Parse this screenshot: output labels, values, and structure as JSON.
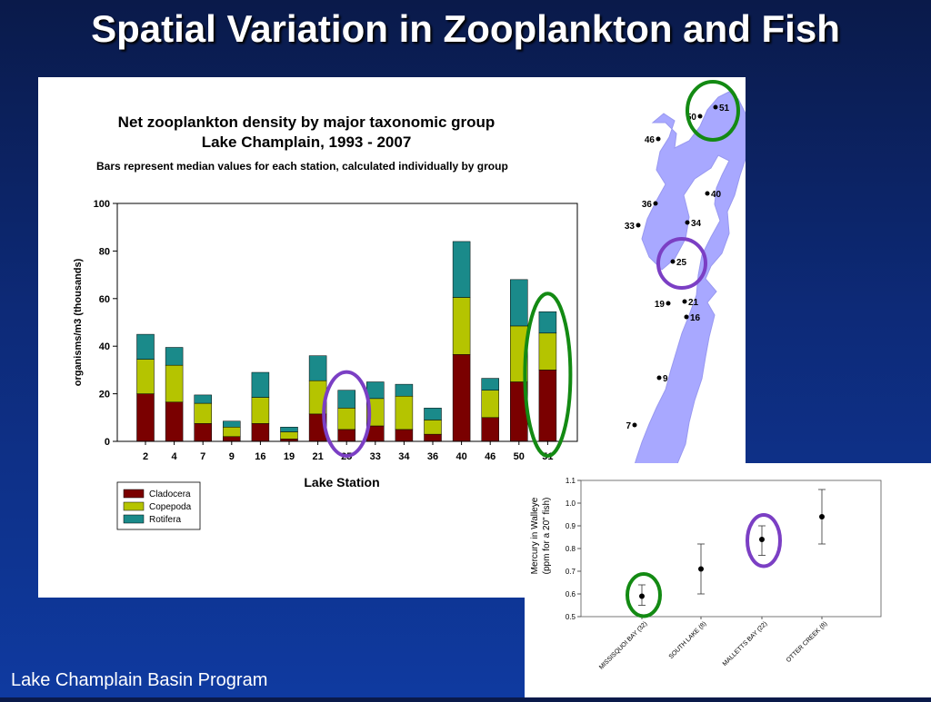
{
  "slide": {
    "title": "Spatial Variation in Zooplankton and Fish",
    "footer": "Lake Champlain Basin Program"
  },
  "colors": {
    "background": "#0d2a78",
    "cladocera": "#7a0000",
    "copepoda": "#b5c400",
    "rotifera": "#1a8a8a",
    "highlight_green": "#138a13",
    "highlight_purple": "#7b3fc4",
    "lake": "#a8a8ff"
  },
  "chart_data": [
    {
      "type": "bar",
      "stacked": true,
      "title": "Net zooplankton density by major taxonomic group",
      "subtitle": "Lake Champlain, 1993 - 2007",
      "note": "Bars represent median values for each station, calculated individually by group",
      "xlabel": "Lake Station",
      "ylabel": "organisms/m3 (thousands)",
      "ylim": [
        0,
        100
      ],
      "yticks": [
        0,
        20,
        40,
        60,
        80,
        100
      ],
      "categories": [
        "2",
        "4",
        "7",
        "9",
        "16",
        "19",
        "21",
        "25",
        "33",
        "34",
        "36",
        "40",
        "46",
        "50",
        "51"
      ],
      "series": [
        {
          "name": "Cladocera",
          "values": [
            20,
            16.5,
            7.5,
            2,
            7.5,
            1,
            11.5,
            5,
            6.5,
            5,
            3,
            36.5,
            10,
            25,
            30
          ]
        },
        {
          "name": "Copepoda",
          "values": [
            14.5,
            15.5,
            8.5,
            4,
            11,
            3,
            14,
            9,
            11.5,
            14,
            6,
            24,
            11.5,
            23.5,
            15.5
          ]
        },
        {
          "name": "Rotifera",
          "values": [
            10.5,
            7.5,
            3.5,
            2.5,
            10.5,
            2,
            10.5,
            7.5,
            7,
            5,
            5,
            23.5,
            5,
            19.5,
            9
          ]
        }
      ],
      "legend_position": "bottom-left",
      "highlighted_categories": [
        {
          "category": "25",
          "color": "purple"
        },
        {
          "category": "51",
          "color": "green"
        }
      ]
    },
    {
      "type": "scatter",
      "error_bars": true,
      "ylabel": "Mercury in Walleye\n(ppm for a 20\" fish)",
      "ylim": [
        0.5,
        1.1
      ],
      "yticks": [
        0.5,
        0.6,
        0.7,
        0.8,
        0.9,
        1.0,
        1.1
      ],
      "categories": [
        "MISSISQUOI BAY (32)",
        "SOUTH LAKE (8)",
        "MALLETTS BAY (22)",
        "OTTER CREEK (8)"
      ],
      "values": [
        0.59,
        0.71,
        0.84,
        0.94
      ],
      "error_low": [
        0.55,
        0.6,
        0.77,
        0.82
      ],
      "error_high": [
        0.64,
        0.82,
        0.9,
        1.06
      ],
      "highlighted_categories": [
        {
          "category": "MISSISQUOI BAY (32)",
          "color": "green"
        },
        {
          "category": "MALLETTS BAY (22)",
          "color": "purple"
        }
      ]
    }
  ],
  "map": {
    "stations": [
      "51",
      "50",
      "46",
      "40",
      "36",
      "34",
      "33",
      "25",
      "21",
      "19",
      "16",
      "9",
      "7"
    ]
  }
}
